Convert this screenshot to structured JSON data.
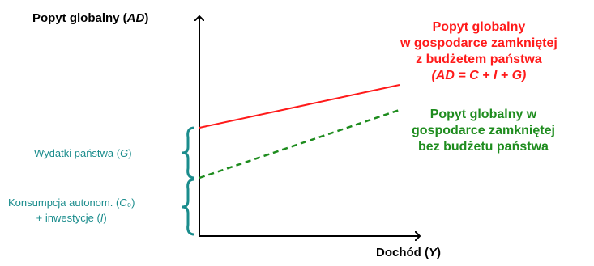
{
  "y_axis_label": "Popyt globalny (AD)",
  "x_axis_label": "Dochód (Y)",
  "ad_with_budget": {
    "line1": "Popyt globalny",
    "line2": "w gospodarce zamkniętej",
    "line3": "z budżetem państwa",
    "formula": "(AD = C + I + G)",
    "color": "#ff1a1a"
  },
  "ad_without_budget": {
    "line1": "Popyt globalny w",
    "line2": "gospodarce zamkniętej",
    "line3": "bez budżetu państwa",
    "color": "#1e8c1e"
  },
  "government_spending_label": "Wydatki państwa (G)",
  "autonomous_label": {
    "line1": "Konsumpcja autonom. (C₀)",
    "line2": "+ inwestycje (I)"
  },
  "colors": {
    "axis": "#000000",
    "brace": "#1a8c8c",
    "teal_text": "#1a8c8c"
  }
}
